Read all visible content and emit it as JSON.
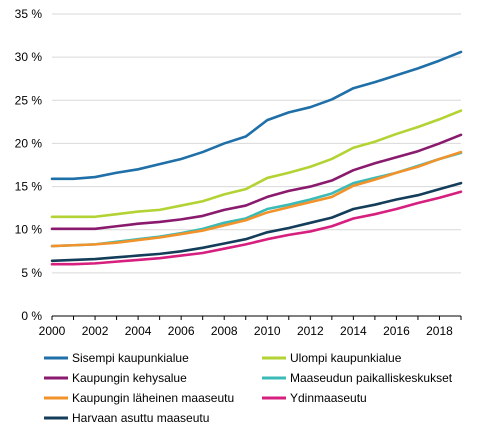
{
  "chart_data": {
    "type": "line",
    "x": [
      2000,
      2001,
      2002,
      2003,
      2004,
      2005,
      2006,
      2007,
      2008,
      2009,
      2010,
      2011,
      2012,
      2013,
      2014,
      2015,
      2016,
      2017,
      2018,
      2019
    ],
    "x_ticks": [
      "2000",
      "2002",
      "2004",
      "2006",
      "2008",
      "2010",
      "2012",
      "2014",
      "2016",
      "2018"
    ],
    "y_ticks": [
      "0 %",
      "5 %",
      "10 %",
      "15 %",
      "20 %",
      "25 %",
      "30 %",
      "35 %"
    ],
    "ylim": [
      0,
      35
    ],
    "y_unit": "%",
    "grid": {
      "horizontal": true,
      "vertical": false
    },
    "legend_position": "bottom",
    "series": [
      {
        "name": "Sisempi kaupunkialue",
        "color": "#1f6fa8",
        "values": [
          15.9,
          15.9,
          16.1,
          16.6,
          17.0,
          17.6,
          18.2,
          19.0,
          20.0,
          20.8,
          22.7,
          23.6,
          24.2,
          25.1,
          26.4,
          27.1,
          27.9,
          28.7,
          29.6,
          30.6
        ]
      },
      {
        "name": "Ulompi kaupunkialue",
        "color": "#b3d334",
        "values": [
          11.5,
          11.5,
          11.5,
          11.8,
          12.1,
          12.3,
          12.8,
          13.3,
          14.1,
          14.7,
          16.0,
          16.6,
          17.3,
          18.2,
          19.5,
          20.2,
          21.1,
          21.9,
          22.8,
          23.8
        ]
      },
      {
        "name": "Kaupungin kehysalue",
        "color": "#8a1a6d",
        "values": [
          10.1,
          10.1,
          10.1,
          10.4,
          10.7,
          10.9,
          11.2,
          11.6,
          12.3,
          12.8,
          13.8,
          14.5,
          15.0,
          15.7,
          16.9,
          17.7,
          18.4,
          19.1,
          20.0,
          21.0
        ]
      },
      {
        "name": "Maaseudun paikalliskeskukset",
        "color": "#3bbbb7",
        "values": [
          8.1,
          8.2,
          8.3,
          8.6,
          8.9,
          9.2,
          9.6,
          10.1,
          10.8,
          11.3,
          12.4,
          12.9,
          13.5,
          14.2,
          15.4,
          16.0,
          16.6,
          17.4,
          18.2,
          18.9
        ]
      },
      {
        "name": "Kaupungin läheinen maaseutu",
        "color": "#f1922a",
        "values": [
          8.1,
          8.2,
          8.3,
          8.5,
          8.8,
          9.1,
          9.5,
          9.9,
          10.5,
          11.1,
          12.0,
          12.6,
          13.2,
          13.8,
          15.1,
          15.8,
          16.6,
          17.3,
          18.2,
          19.0
        ]
      },
      {
        "name": "Ydinmaaseutu",
        "color": "#d61f7e",
        "values": [
          6.0,
          6.0,
          6.1,
          6.3,
          6.5,
          6.7,
          7.0,
          7.3,
          7.8,
          8.3,
          8.9,
          9.4,
          9.8,
          10.4,
          11.3,
          11.8,
          12.4,
          13.1,
          13.7,
          14.4
        ]
      },
      {
        "name": "Harvaan asuttu maaseutu",
        "color": "#143d5a",
        "values": [
          6.4,
          6.5,
          6.6,
          6.8,
          7.0,
          7.2,
          7.5,
          7.9,
          8.4,
          8.9,
          9.7,
          10.2,
          10.8,
          11.4,
          12.4,
          12.9,
          13.5,
          14.0,
          14.7,
          15.4
        ]
      }
    ]
  }
}
